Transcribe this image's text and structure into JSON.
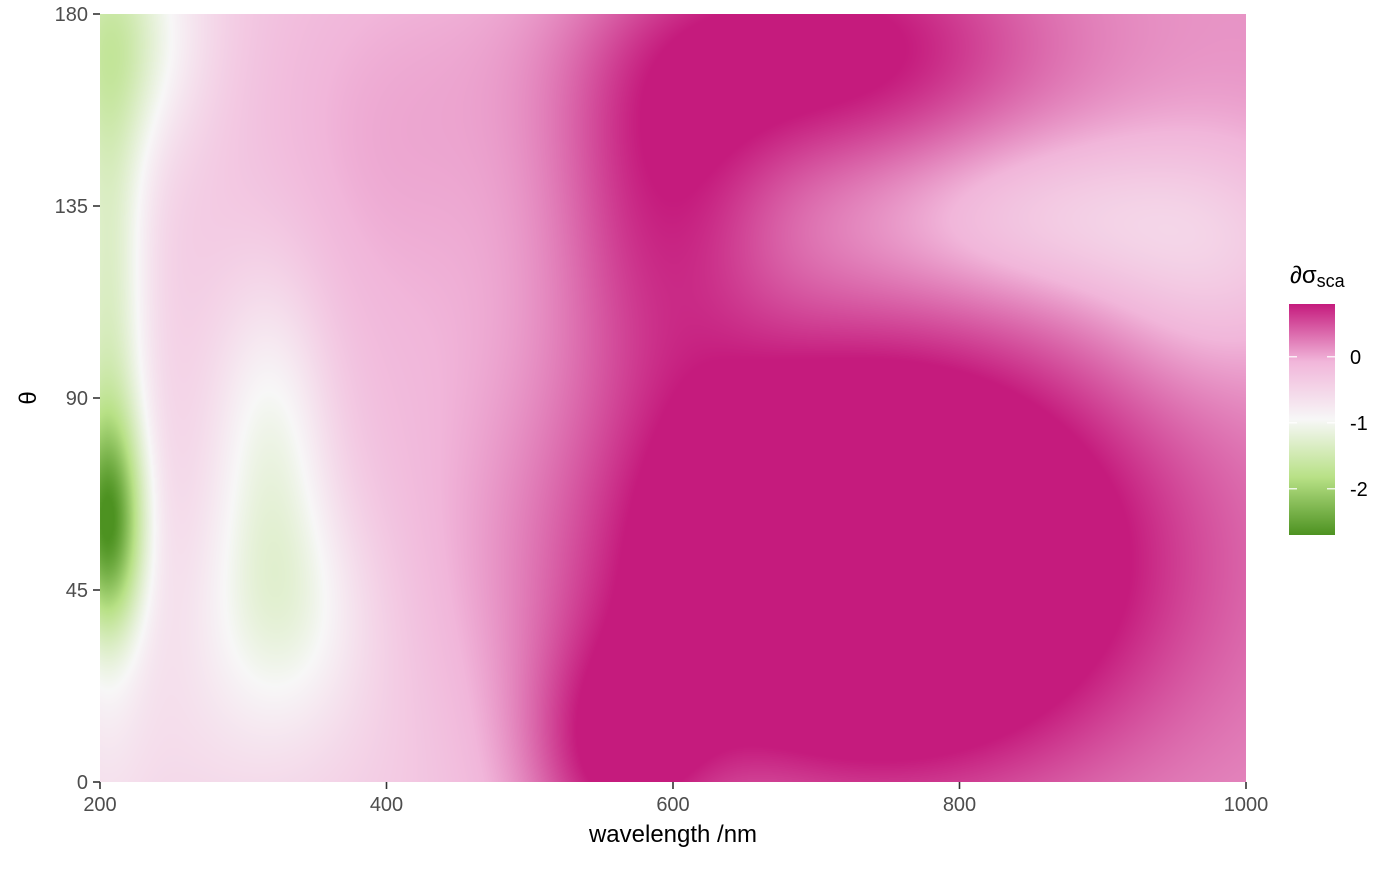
{
  "chart_data": {
    "type": "heatmap",
    "xlabel": "wavelength /nm",
    "ylabel": "θ",
    "xlim": [
      200,
      1000
    ],
    "ylim": [
      0,
      180
    ],
    "x_ticks": [
      200,
      400,
      600,
      800,
      1000
    ],
    "y_ticks": [
      0,
      45,
      90,
      135,
      180
    ],
    "x_tick_labels": [
      "200",
      "400",
      "600",
      "800",
      "1000"
    ],
    "y_tick_labels": [
      "0",
      "45",
      "90",
      "135",
      "180"
    ],
    "grid": false,
    "legend": {
      "title_main": "∂σ",
      "title_sub": "sca",
      "placement": "right",
      "range": [
        -2.7,
        0.8
      ],
      "ticks": [
        0,
        -1,
        -2
      ],
      "tick_labels": [
        "0",
        "-1",
        "-2"
      ],
      "colors": {
        "low": "#4d9221",
        "mid_low": "#e6f5d0",
        "mid": "#f7f7f7",
        "mid_high": "#fde0ef",
        "high": "#c51b7d"
      }
    },
    "bumps": [
      {
        "x": 730,
        "y": 52,
        "sx": 140,
        "sy": 38,
        "amp": 1.9
      },
      {
        "x": 700,
        "y": 172,
        "sx": 110,
        "sy": 22,
        "amp": 1.0
      },
      {
        "x": 590,
        "y": 135,
        "sx": 55,
        "sy": 30,
        "amp": 0.7
      },
      {
        "x": 560,
        "y": 5,
        "sx": 45,
        "sy": 20,
        "amp": 0.8
      },
      {
        "x": 390,
        "y": 150,
        "sx": 80,
        "sy": 40,
        "amp": 0.3
      },
      {
        "x": 205,
        "y": 60,
        "sx": 18,
        "sy": 18,
        "amp": -1.7
      },
      {
        "x": 205,
        "y": 110,
        "sx": 20,
        "sy": 55,
        "amp": -0.9
      },
      {
        "x": 215,
        "y": 175,
        "sx": 40,
        "sy": 20,
        "amp": -0.8
      },
      {
        "x": 320,
        "y": 80,
        "sx": 30,
        "sy": 28,
        "amp": -0.7
      },
      {
        "x": 330,
        "y": 40,
        "sx": 45,
        "sy": 20,
        "amp": -0.6
      },
      {
        "x": 870,
        "y": 132,
        "sx": 90,
        "sy": 14,
        "amp": -0.5
      },
      {
        "x": 980,
        "y": 120,
        "sx": 60,
        "sy": 20,
        "amp": -0.4
      },
      {
        "x": 300,
        "y": 10,
        "sx": 100,
        "sy": 20,
        "amp": -0.15
      }
    ],
    "base": {
      "value": -0.45,
      "x_slope": 0.55
    }
  }
}
